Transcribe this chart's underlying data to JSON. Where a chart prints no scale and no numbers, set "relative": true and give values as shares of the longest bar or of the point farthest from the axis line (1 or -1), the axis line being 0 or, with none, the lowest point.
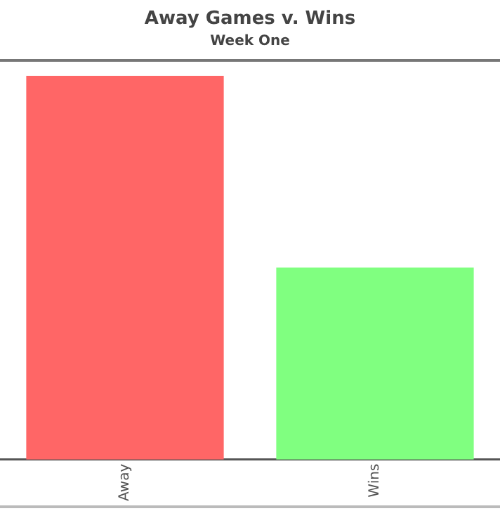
{
  "chart_data": {
    "type": "bar",
    "title": "Away Games v. Wins",
    "subtitle": "Week One",
    "categories": [
      "Away",
      "Wins"
    ],
    "values": [
      1,
      0.5
    ],
    "colors": [
      "#ff6666",
      "#80ff80"
    ],
    "relative": true
  }
}
